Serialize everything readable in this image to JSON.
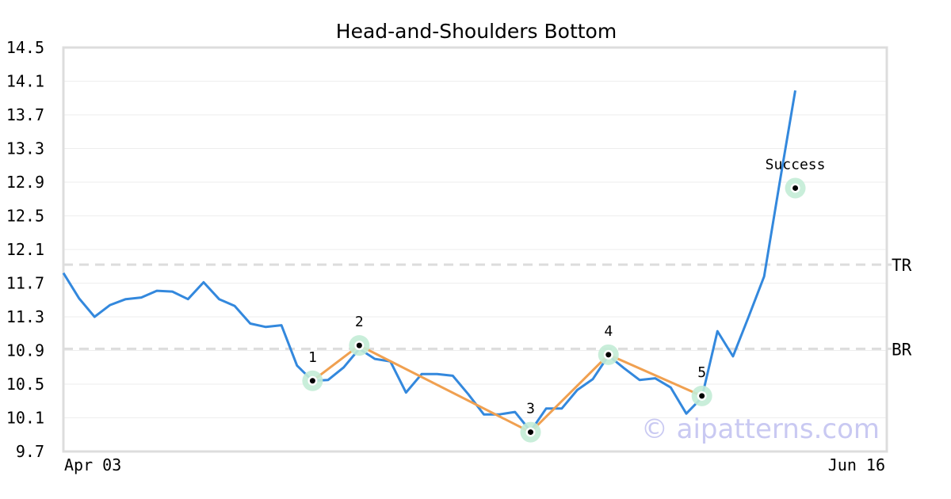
{
  "chart_data": {
    "type": "line",
    "title": "Head-and-Shoulders Bottom",
    "xlabel": "",
    "ylabel": "",
    "ylim": [
      9.7,
      14.5
    ],
    "yticks": [
      "14.5",
      "14.1",
      "13.7",
      "13.3",
      "12.9",
      "12.5",
      "12.1",
      "11.7",
      "11.3",
      "10.9",
      "10.5",
      "10.1",
      "9.7"
    ],
    "xticks": [
      "Apr 03",
      "Jun 16"
    ],
    "grid": true,
    "series": [
      {
        "color": "#3388dd",
        "values": [
          11.82,
          11.52,
          11.3,
          11.44,
          11.51,
          11.53,
          11.61,
          11.6,
          11.51,
          11.71,
          11.51,
          11.43,
          11.22,
          11.18,
          11.2,
          10.72,
          10.54,
          10.55,
          10.7,
          10.92,
          10.8,
          10.77,
          10.4,
          10.62,
          10.62,
          10.6,
          10.38,
          10.14,
          10.14,
          10.17,
          9.94,
          10.21,
          10.21,
          10.43,
          10.56,
          10.84,
          10.69,
          10.55,
          10.57,
          10.46,
          10.15,
          10.34,
          11.13,
          10.83,
          11.3,
          11.78,
          12.9,
          13.99
        ]
      },
      {
        "color": "#f0a050",
        "values": [
          {
            "index": 16,
            "value": 10.54
          },
          {
            "index": 19,
            "value": 10.96
          },
          {
            "index": 30,
            "value": 9.93
          },
          {
            "index": 35,
            "value": 10.85
          },
          {
            "index": 41,
            "value": 10.36
          }
        ]
      }
    ],
    "pattern_points": [
      {
        "label": "1",
        "index": 16,
        "value": 10.54
      },
      {
        "label": "2",
        "index": 19,
        "value": 10.96
      },
      {
        "label": "3",
        "index": 30,
        "value": 9.93
      },
      {
        "label": "4",
        "index": 35,
        "value": 10.85
      },
      {
        "label": "5",
        "index": 41,
        "value": 10.36
      },
      {
        "label": "Success",
        "index": 47,
        "value": 12.83
      }
    ],
    "levels": [
      {
        "label": "TR",
        "value": 11.92
      },
      {
        "label": "BR",
        "value": 10.92
      }
    ],
    "watermark": "© aipatterns.com",
    "colors": {
      "price_line": "#3388dd",
      "pattern_line": "#f0a050",
      "marker_halo": "#c3ecd6",
      "level_line": "#dddddd",
      "grid": "#eeeeee",
      "frame": "#dddddd"
    }
  }
}
